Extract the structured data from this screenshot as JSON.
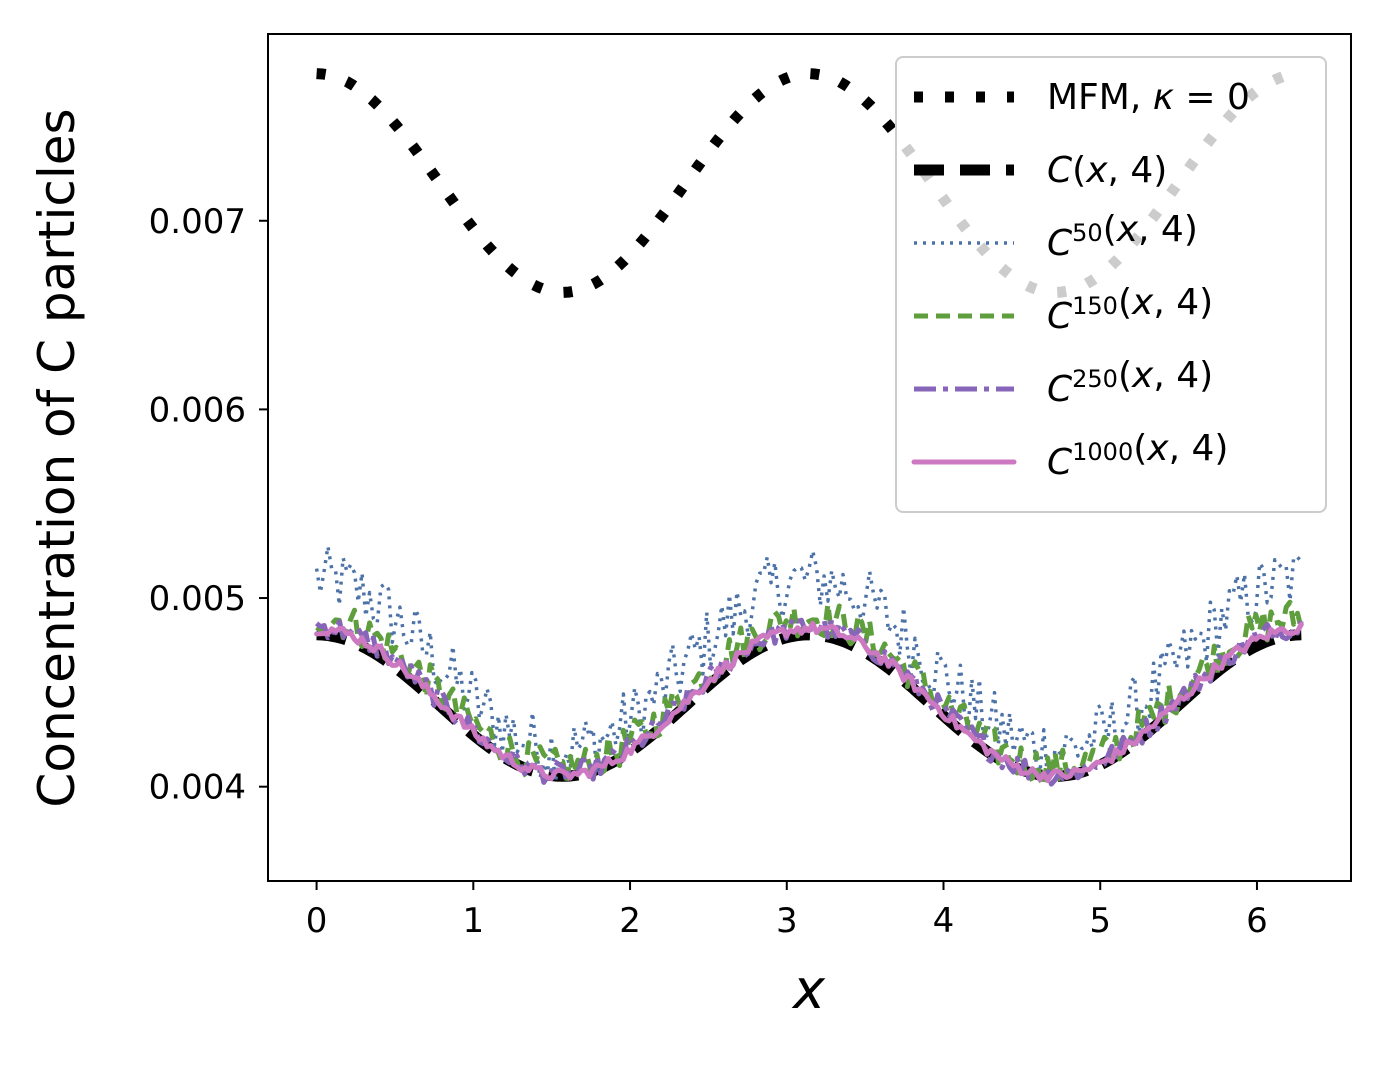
{
  "chart_data": {
    "type": "line",
    "xlabel": "x",
    "ylabel": "Concentration of C particles",
    "xlim": [
      -0.31,
      6.6
    ],
    "ylim": [
      0.0035,
      0.00799
    ],
    "xticks": [
      0,
      1,
      2,
      3,
      4,
      5,
      6
    ],
    "yticks": [
      0.004,
      0.005,
      0.006,
      0.007
    ],
    "xtick_labels": [
      "0",
      "1",
      "2",
      "3",
      "4",
      "5",
      "6"
    ],
    "ytick_labels": [
      "0.004",
      "0.005",
      "0.006",
      "0.007"
    ],
    "grid": false,
    "legend_position": "upper right",
    "series": [
      {
        "id": "mfm",
        "legend_parts": [
          {
            "t": "MFM, "
          },
          {
            "t": "κ",
            "it": true
          },
          {
            "t": " = 0"
          }
        ],
        "color": "#000000",
        "style": "dotted",
        "model": {
          "mean": 0.0072,
          "amp": 0.00058,
          "freq": 2,
          "phase": 0
        }
      },
      {
        "id": "c-exact",
        "legend_parts": [
          {
            "t": "C",
            "it": true
          },
          {
            "t": "("
          },
          {
            "t": "x",
            "it": true
          },
          {
            "t": ", 4)"
          }
        ],
        "color": "#000000",
        "style": "dashed",
        "model": {
          "mean": 0.00443,
          "amp": 0.000375,
          "freq": 2,
          "phase": 0
        }
      },
      {
        "id": "c50",
        "legend_parts": [
          {
            "t": "C",
            "it": true
          },
          {
            "t": "50",
            "sup": true
          },
          {
            "t": "("
          },
          {
            "t": "x",
            "it": true
          },
          {
            "t": ", 4)"
          }
        ],
        "color": "#4c72a8",
        "style": "dotted-thin",
        "model": {
          "mean": 0.00465,
          "amp": 0.00045,
          "freq": 2,
          "phase": 0,
          "noise": 0.00018
        }
      },
      {
        "id": "c150",
        "legend_parts": [
          {
            "t": "C",
            "it": true
          },
          {
            "t": "150",
            "sup": true
          },
          {
            "t": "("
          },
          {
            "t": "x",
            "it": true
          },
          {
            "t": ", 4)"
          }
        ],
        "color": "#5f9e3c",
        "style": "dashed-thin",
        "model": {
          "mean": 0.0045,
          "amp": 0.0004,
          "freq": 2,
          "phase": 0,
          "noise": 0.0001
        }
      },
      {
        "id": "c250",
        "legend_parts": [
          {
            "t": "C",
            "it": true
          },
          {
            "t": "250",
            "sup": true
          },
          {
            "t": "("
          },
          {
            "t": "x",
            "it": true
          },
          {
            "t": ", 4)"
          }
        ],
        "color": "#8765b8",
        "style": "dashdot",
        "model": {
          "mean": 0.00446,
          "amp": 0.00039,
          "freq": 2,
          "phase": 0,
          "noise": 6e-05
        }
      },
      {
        "id": "c1000",
        "legend_parts": [
          {
            "t": "C",
            "it": true
          },
          {
            "t": "1000",
            "sup": true
          },
          {
            "t": "("
          },
          {
            "t": "x",
            "it": true
          },
          {
            "t": ", 4)"
          }
        ],
        "color": "#cc79c2",
        "style": "solid",
        "model": {
          "mean": 0.00445,
          "amp": 0.00039,
          "freq": 2,
          "phase": 0,
          "noise": 3e-05
        }
      }
    ],
    "x_range": [
      0,
      6.283
    ]
  }
}
